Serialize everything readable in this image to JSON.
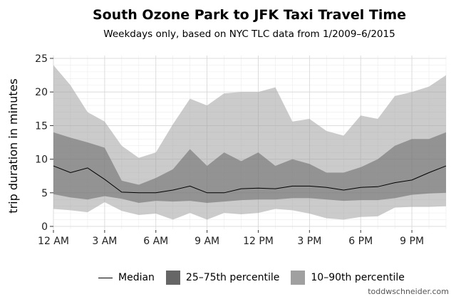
{
  "chart_data": {
    "type": "area",
    "title": "South Ozone Park to JFK Taxi Travel Time",
    "subtitle": "Weekdays only, based on NYC TLC data from 1/2009–6/2015",
    "xlabel": "",
    "ylabel": "trip duration in minutes",
    "xlim": [
      0,
      23
    ],
    "ylim": [
      0,
      25
    ],
    "x_ticks": [
      {
        "value": 0,
        "label": "12 AM"
      },
      {
        "value": 3,
        "label": "3 AM"
      },
      {
        "value": 6,
        "label": "6 AM"
      },
      {
        "value": 9,
        "label": "9 AM"
      },
      {
        "value": 12,
        "label": "12 PM"
      },
      {
        "value": 15,
        "label": "3 PM"
      },
      {
        "value": 18,
        "label": "6 PM"
      },
      {
        "value": 21,
        "label": "9 PM"
      }
    ],
    "y_ticks": [
      0,
      5,
      10,
      15,
      20,
      25
    ],
    "x": [
      0,
      1,
      2,
      3,
      4,
      5,
      6,
      7,
      8,
      9,
      10,
      11,
      12,
      13,
      14,
      15,
      16,
      17,
      18,
      19,
      20,
      21,
      22,
      23
    ],
    "series": [
      {
        "name": "Median",
        "kind": "line",
        "color": "#000000",
        "values": [
          9.0,
          8.0,
          8.7,
          7.0,
          5.1,
          5.0,
          5.0,
          5.4,
          6.0,
          5.0,
          5.0,
          5.6,
          5.7,
          5.6,
          6.0,
          6.0,
          5.8,
          5.4,
          5.8,
          5.9,
          6.5,
          6.9,
          8.0,
          9.0
        ]
      },
      {
        "name": "25–75th percentile",
        "kind": "band",
        "color": "#666666",
        "low": [
          4.8,
          4.3,
          4.0,
          4.5,
          4.1,
          3.5,
          3.8,
          3.7,
          3.8,
          3.5,
          3.7,
          3.9,
          4.0,
          4.0,
          4.2,
          4.2,
          4.0,
          3.8,
          3.9,
          3.9,
          4.2,
          4.7,
          4.9,
          5.0
        ],
        "high": [
          14.0,
          13.2,
          12.5,
          11.7,
          6.8,
          6.2,
          7.2,
          8.5,
          11.5,
          9.0,
          11.0,
          9.7,
          11.0,
          9.0,
          10.0,
          9.3,
          8.0,
          8.0,
          8.8,
          10.0,
          12.0,
          13.0,
          13.0,
          14.0
        ]
      },
      {
        "name": "10–90th percentile",
        "kind": "band",
        "color": "#a0a0a0",
        "low": [
          2.6,
          2.4,
          2.1,
          3.6,
          2.3,
          1.7,
          1.9,
          1.0,
          2.0,
          1.0,
          2.0,
          1.8,
          2.0,
          2.6,
          2.4,
          1.9,
          1.2,
          1.0,
          1.4,
          1.5,
          2.8,
          2.9,
          2.9,
          3.0
        ],
        "high": [
          24.0,
          21.0,
          17.0,
          15.6,
          12.0,
          10.2,
          11.0,
          15.2,
          19.0,
          18.0,
          19.8,
          20.0,
          20.0,
          20.7,
          15.6,
          16.0,
          14.2,
          13.5,
          16.5,
          16.0,
          19.4,
          20.0,
          20.8,
          22.5
        ]
      }
    ],
    "grid": true,
    "legend_position": "bottom"
  },
  "legend": [
    {
      "label": "Median",
      "kind": "line",
      "color": "#000000"
    },
    {
      "label": "25–75th percentile",
      "kind": "box",
      "color": "#666666"
    },
    {
      "label": "10–90th percentile",
      "kind": "box",
      "color": "#a0a0a0"
    }
  ],
  "credit": "toddwschneider.com"
}
